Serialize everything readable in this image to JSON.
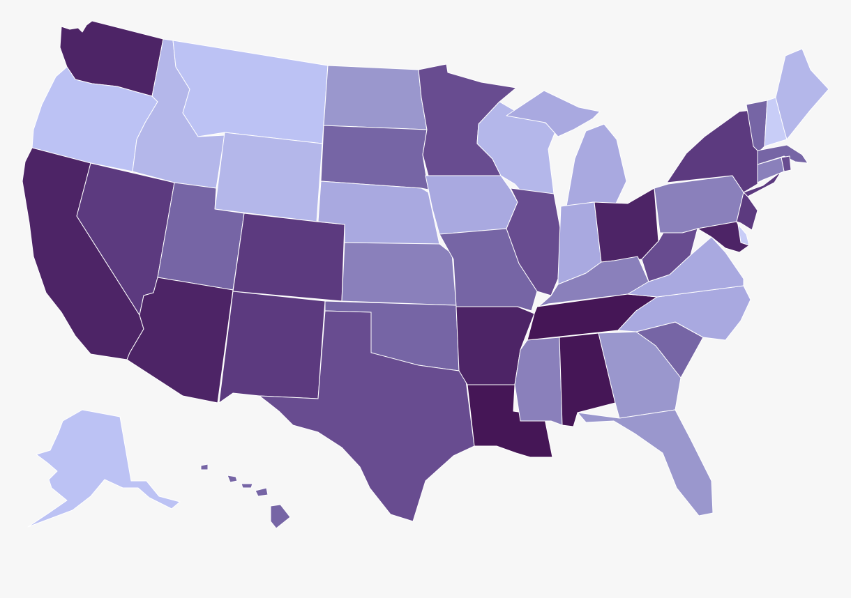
{
  "map": {
    "type": "choropleth",
    "region": "United States",
    "background": "#f7f7f7",
    "border_color": "#ffffff",
    "color_scale": [
      "#c8cdf7",
      "#bcc2f4",
      "#b4b7ea",
      "#a9a9e0",
      "#9a97cd",
      "#8a80bb",
      "#7665a5",
      "#684c90",
      "#5c3a7f",
      "#4d2466",
      "#451656"
    ],
    "states": [
      {
        "code": "WA",
        "level": 9
      },
      {
        "code": "OR",
        "level": 1
      },
      {
        "code": "CA",
        "level": 9
      },
      {
        "code": "NV",
        "level": 8
      },
      {
        "code": "ID",
        "level": 2
      },
      {
        "code": "MT",
        "level": 1
      },
      {
        "code": "WY",
        "level": 2
      },
      {
        "code": "UT",
        "level": 6
      },
      {
        "code": "AZ",
        "level": 9
      },
      {
        "code": "CO",
        "level": 8
      },
      {
        "code": "NM",
        "level": 8
      },
      {
        "code": "ND",
        "level": 4
      },
      {
        "code": "SD",
        "level": 6
      },
      {
        "code": "NE",
        "level": 3
      },
      {
        "code": "KS",
        "level": 5
      },
      {
        "code": "OK",
        "level": 6
      },
      {
        "code": "TX",
        "level": 7
      },
      {
        "code": "MN",
        "level": 7
      },
      {
        "code": "IA",
        "level": 3
      },
      {
        "code": "MO",
        "level": 6
      },
      {
        "code": "AR",
        "level": 9
      },
      {
        "code": "LA",
        "level": 10
      },
      {
        "code": "WI",
        "level": 2
      },
      {
        "code": "IL",
        "level": 7
      },
      {
        "code": "MI",
        "level": 3
      },
      {
        "code": "IN",
        "level": 3
      },
      {
        "code": "OH",
        "level": 9
      },
      {
        "code": "KY",
        "level": 5
      },
      {
        "code": "TN",
        "level": 10
      },
      {
        "code": "MS",
        "level": 5
      },
      {
        "code": "AL",
        "level": 10
      },
      {
        "code": "GA",
        "level": 4
      },
      {
        "code": "FL",
        "level": 4
      },
      {
        "code": "SC",
        "level": 6
      },
      {
        "code": "NC",
        "level": 3
      },
      {
        "code": "VA",
        "level": 3
      },
      {
        "code": "WV",
        "level": 7
      },
      {
        "code": "PA",
        "level": 5
      },
      {
        "code": "NY",
        "level": 8
      },
      {
        "code": "VT",
        "level": 6
      },
      {
        "code": "NH",
        "level": 0
      },
      {
        "code": "ME",
        "level": 2
      },
      {
        "code": "MA",
        "level": 6
      },
      {
        "code": "RI",
        "level": 7
      },
      {
        "code": "CT",
        "level": 5
      },
      {
        "code": "NJ",
        "level": 8
      },
      {
        "code": "DE",
        "level": 0
      },
      {
        "code": "MD",
        "level": 9
      },
      {
        "code": "AK",
        "level": 1
      },
      {
        "code": "HI",
        "level": 6
      }
    ]
  }
}
